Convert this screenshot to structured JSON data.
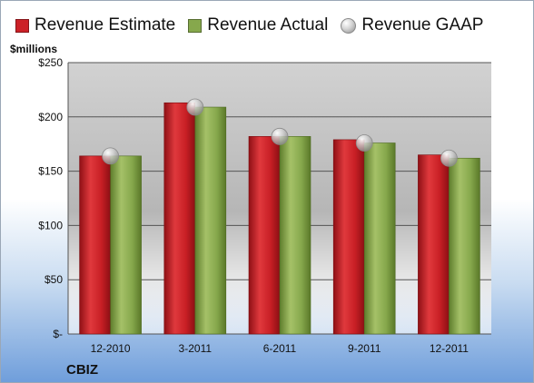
{
  "legend": {
    "estimate": "Revenue Estimate",
    "actual": "Revenue Actual",
    "gaap": "Revenue GAAP"
  },
  "units_label": "$millions",
  "footer_label": "CBIZ",
  "colors": {
    "estimate": "#cc2127",
    "actual": "#86a84c",
    "gaap": "#bfbfbf"
  },
  "chart_data": {
    "type": "bar",
    "categories": [
      "12-2010",
      "3-2011",
      "6-2011",
      "9-2011",
      "12-2011"
    ],
    "series": [
      {
        "name": "Revenue Estimate",
        "values": [
          164,
          213,
          182,
          179,
          165
        ]
      },
      {
        "name": "Revenue Actual",
        "values": [
          164,
          209,
          182,
          176,
          162
        ]
      },
      {
        "name": "Revenue GAAP",
        "values": [
          164,
          209,
          182,
          176,
          162
        ]
      }
    ],
    "yticks": [
      0,
      50,
      100,
      150,
      200,
      250
    ],
    "ytick_labels": [
      "$-",
      "$50",
      "$100",
      "$150",
      "$200",
      "$250"
    ],
    "ylim": [
      0,
      250
    ],
    "grid": true,
    "legend_position": "top"
  }
}
